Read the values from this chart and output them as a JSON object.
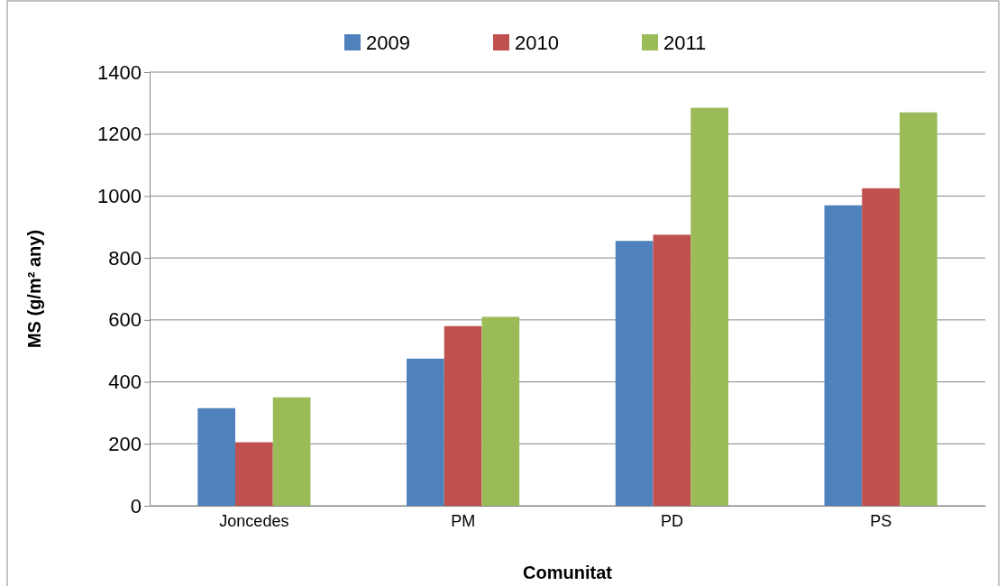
{
  "chart_data": {
    "type": "bar",
    "xlabel": "Comunitat",
    "ylabel": "MS (g/m² any)",
    "categories": [
      "Joncedes",
      "PM",
      "PD",
      "PS"
    ],
    "series": [
      {
        "name": "2009",
        "color": "#4f81bd",
        "values": [
          315,
          475,
          855,
          970
        ]
      },
      {
        "name": "2010",
        "color": "#c0504d",
        "values": [
          205,
          580,
          875,
          1025
        ]
      },
      {
        "name": "2011",
        "color": "#9bbb59",
        "values": [
          350,
          610,
          1285,
          1270
        ]
      }
    ],
    "ylim": [
      0,
      1400
    ],
    "yticks": [
      0,
      200,
      400,
      600,
      800,
      1000,
      1200,
      1400
    ],
    "grid": "y",
    "legend": "top"
  }
}
